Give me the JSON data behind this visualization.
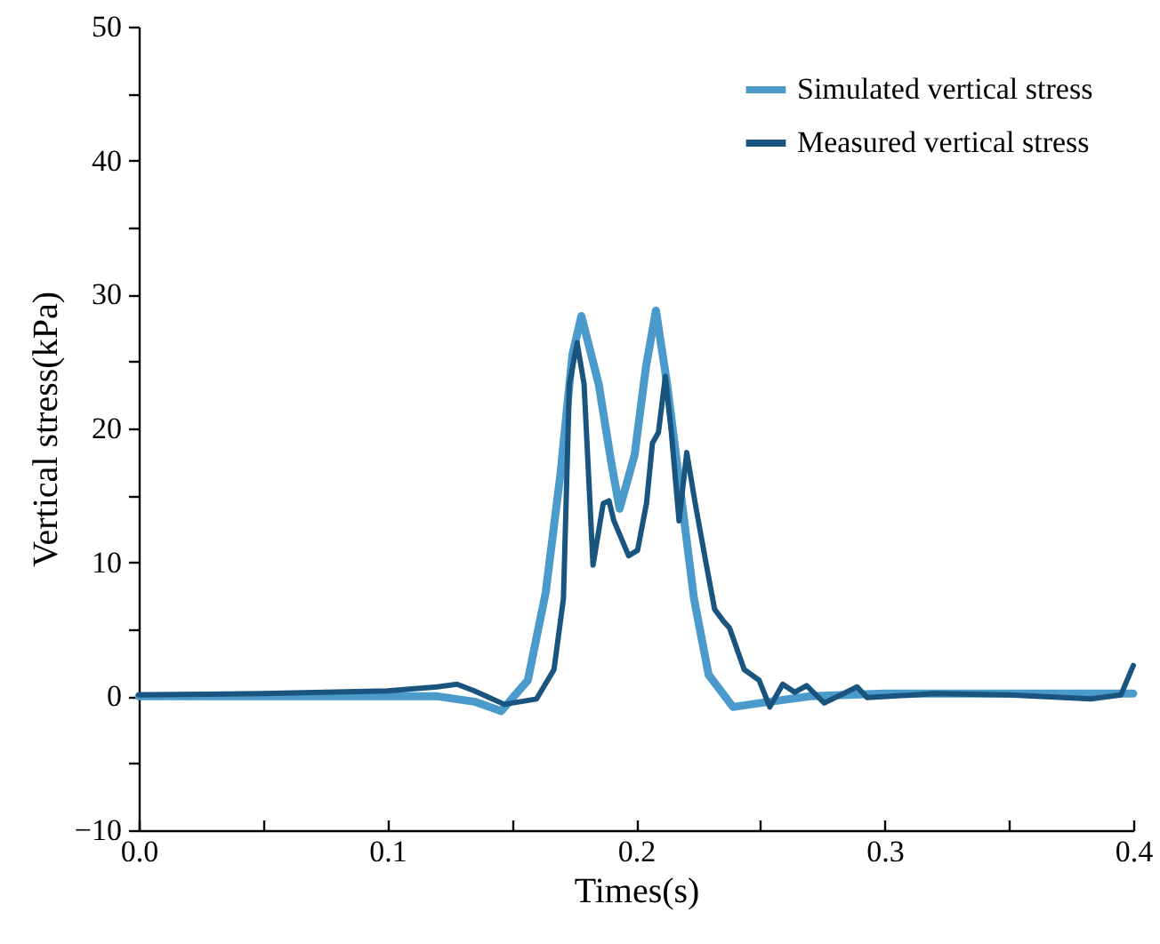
{
  "chart_data": {
    "type": "line",
    "xlabel": "Times(s)",
    "ylabel": "Vertical stress(kPa)",
    "xlim": [
      0,
      0.4
    ],
    "ylim": [
      -10,
      50
    ],
    "xticks": [
      {
        "value": 0,
        "label": "0.0"
      },
      {
        "value": 0.05,
        "label": null
      },
      0.1,
      {
        "value": 0.15,
        "label": null
      },
      0.2,
      {
        "value": 0.25,
        "label": null
      },
      0.3,
      {
        "value": 0.35,
        "label": null
      },
      0.4
    ],
    "yticks": [
      {
        "value": -10,
        "label": "−10"
      },
      {
        "value": -5,
        "label": null
      },
      0,
      {
        "value": 5,
        "label": null
      },
      10,
      {
        "value": 15,
        "label": null
      },
      20,
      {
        "value": 25,
        "label": null
      },
      30,
      {
        "value": 35,
        "label": null
      },
      40,
      {
        "value": 45,
        "label": null
      },
      50
    ],
    "grid": false,
    "legend": "top right",
    "line_style": "solid",
    "marker": "none",
    "series": [
      {
        "name": "Simulated vertical stress",
        "color": "#4a9bcb",
        "x": [
          0,
          0.05,
          0.1,
          0.12,
          0.135,
          0.1458,
          0.1565,
          0.1637,
          0.1696,
          0.1744,
          0.178,
          0.185,
          0.19,
          0.1934,
          0.1994,
          0.204,
          0.208,
          0.2125,
          0.2185,
          0.2233,
          0.2292,
          0.239,
          0.25,
          0.27,
          0.3,
          0.35,
          0.4
        ],
        "values": [
          0,
          0,
          0,
          0,
          -0.4,
          -1.1,
          1.2,
          7.8,
          16.6,
          25.5,
          28.4,
          23.3,
          17.5,
          14.0,
          18.0,
          24.6,
          28.8,
          23.3,
          14.4,
          7.3,
          1.6,
          -0.8,
          -0.5,
          0,
          0.2,
          0.2,
          0.2
        ]
      },
      {
        "name": "Measured vertical stress",
        "color": "#1a5580",
        "x": [
          0,
          0.05,
          0.1,
          0.12,
          0.128,
          0.135,
          0.147,
          0.16,
          0.167,
          0.1708,
          0.1732,
          0.1763,
          0.1791,
          0.1827,
          0.1868,
          0.1891,
          0.1911,
          0.197,
          0.2006,
          0.2042,
          0.2066,
          0.209,
          0.2118,
          0.2142,
          0.2173,
          0.2204,
          0.2238,
          0.2281,
          0.2316,
          0.2352,
          0.2376,
          0.2435,
          0.2495,
          0.2538,
          0.259,
          0.2638,
          0.2686,
          0.2757,
          0.2889,
          0.293,
          0.32,
          0.35,
          0.383,
          0.395,
          0.4
        ],
        "values": [
          0.1,
          0.2,
          0.4,
          0.7,
          0.9,
          0.4,
          -0.6,
          -0.2,
          2.0,
          7.3,
          23.3,
          26.4,
          23.3,
          9.8,
          14.4,
          14.6,
          13.1,
          10.5,
          10.9,
          14.4,
          18.9,
          19.7,
          23.9,
          19.7,
          13.1,
          18.2,
          14.4,
          10.0,
          6.5,
          5.6,
          5.1,
          2.0,
          1.2,
          -0.8,
          0.9,
          0.3,
          0.8,
          -0.5,
          0.7,
          -0.1,
          0.2,
          0.1,
          -0.2,
          0.1,
          2.3
        ]
      }
    ]
  }
}
